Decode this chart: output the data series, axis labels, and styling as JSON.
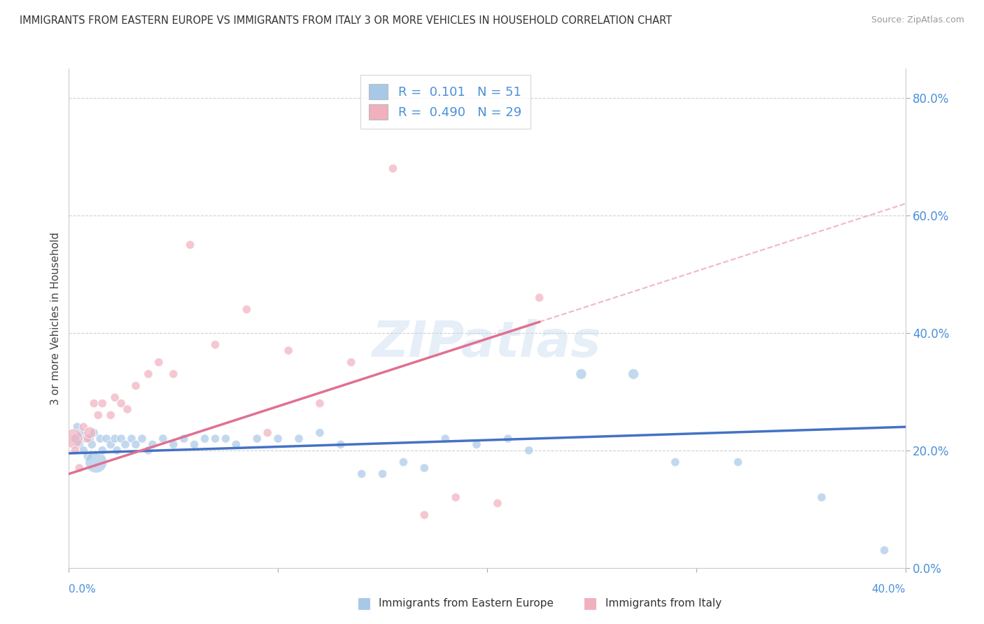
{
  "title": "IMMIGRANTS FROM EASTERN EUROPE VS IMMIGRANTS FROM ITALY 3 OR MORE VEHICLES IN HOUSEHOLD CORRELATION CHART",
  "source": "Source: ZipAtlas.com",
  "ylabel": "3 or more Vehicles in Household",
  "xlim": [
    0.0,
    40.0
  ],
  "ylim": [
    0.0,
    85.0
  ],
  "ytick_vals": [
    0.0,
    20.0,
    40.0,
    60.0,
    80.0
  ],
  "xtick_vals": [
    0.0,
    10.0,
    20.0,
    30.0,
    40.0
  ],
  "blue_color": "#a8c8e8",
  "pink_color": "#f0b0be",
  "blue_line_color": "#4472c4",
  "pink_line_color": "#e07090",
  "blue_R": 0.101,
  "blue_N": 51,
  "pink_R": 0.49,
  "pink_N": 29,
  "watermark": "ZIPatlas",
  "blue_scatter_x": [
    0.3,
    0.4,
    0.5,
    0.6,
    0.7,
    0.8,
    0.9,
    1.0,
    1.1,
    1.2,
    1.3,
    1.5,
    1.6,
    1.8,
    2.0,
    2.2,
    2.3,
    2.5,
    2.7,
    3.0,
    3.2,
    3.5,
    3.8,
    4.0,
    4.5,
    5.0,
    5.5,
    6.0,
    6.5,
    7.0,
    7.5,
    8.0,
    9.0,
    10.0,
    11.0,
    12.0,
    13.0,
    14.0,
    15.0,
    16.0,
    17.0,
    18.0,
    19.5,
    21.0,
    22.0,
    24.5,
    27.0,
    29.0,
    32.0,
    36.0,
    39.0
  ],
  "blue_scatter_y": [
    22,
    24,
    21,
    23,
    20,
    22,
    19,
    22,
    21,
    23,
    18,
    22,
    20,
    22,
    21,
    22,
    20,
    22,
    21,
    22,
    21,
    22,
    20,
    21,
    22,
    21,
    22,
    21,
    22,
    22,
    22,
    21,
    22,
    22,
    22,
    23,
    21,
    16,
    16,
    18,
    17,
    22,
    21,
    22,
    20,
    33,
    33,
    18,
    18,
    12,
    3
  ],
  "blue_scatter_size": [
    80,
    80,
    80,
    80,
    80,
    80,
    80,
    80,
    80,
    80,
    500,
    80,
    80,
    80,
    80,
    80,
    80,
    80,
    80,
    80,
    80,
    80,
    80,
    80,
    80,
    80,
    80,
    80,
    80,
    80,
    80,
    80,
    80,
    80,
    80,
    80,
    80,
    80,
    80,
    80,
    80,
    80,
    80,
    80,
    80,
    120,
    120,
    80,
    80,
    80,
    80
  ],
  "pink_scatter_x": [
    0.2,
    0.3,
    0.5,
    0.7,
    0.9,
    1.0,
    1.2,
    1.4,
    1.6,
    2.0,
    2.2,
    2.5,
    2.8,
    3.2,
    3.8,
    4.3,
    5.0,
    5.8,
    7.0,
    8.5,
    9.5,
    10.5,
    12.0,
    13.5,
    15.5,
    17.0,
    18.5,
    20.5,
    22.5
  ],
  "pink_scatter_y": [
    22,
    20,
    17,
    24,
    22,
    23,
    28,
    26,
    28,
    26,
    29,
    28,
    27,
    31,
    33,
    35,
    33,
    55,
    38,
    44,
    23,
    37,
    28,
    35,
    68,
    9,
    12,
    11,
    46
  ],
  "pink_scatter_size": [
    400,
    80,
    80,
    80,
    80,
    150,
    80,
    80,
    80,
    80,
    80,
    80,
    80,
    80,
    80,
    80,
    80,
    80,
    80,
    80,
    80,
    80,
    80,
    80,
    80,
    80,
    80,
    80,
    80
  ],
  "blue_line_x0": 0.0,
  "blue_line_x1": 40.0,
  "blue_line_y0": 19.5,
  "blue_line_y1": 24.0,
  "pink_line_x0": 0.0,
  "pink_line_x1": 40.0,
  "pink_line_y0": 16.0,
  "pink_line_y1": 62.0,
  "pink_solid_end_x": 22.5
}
